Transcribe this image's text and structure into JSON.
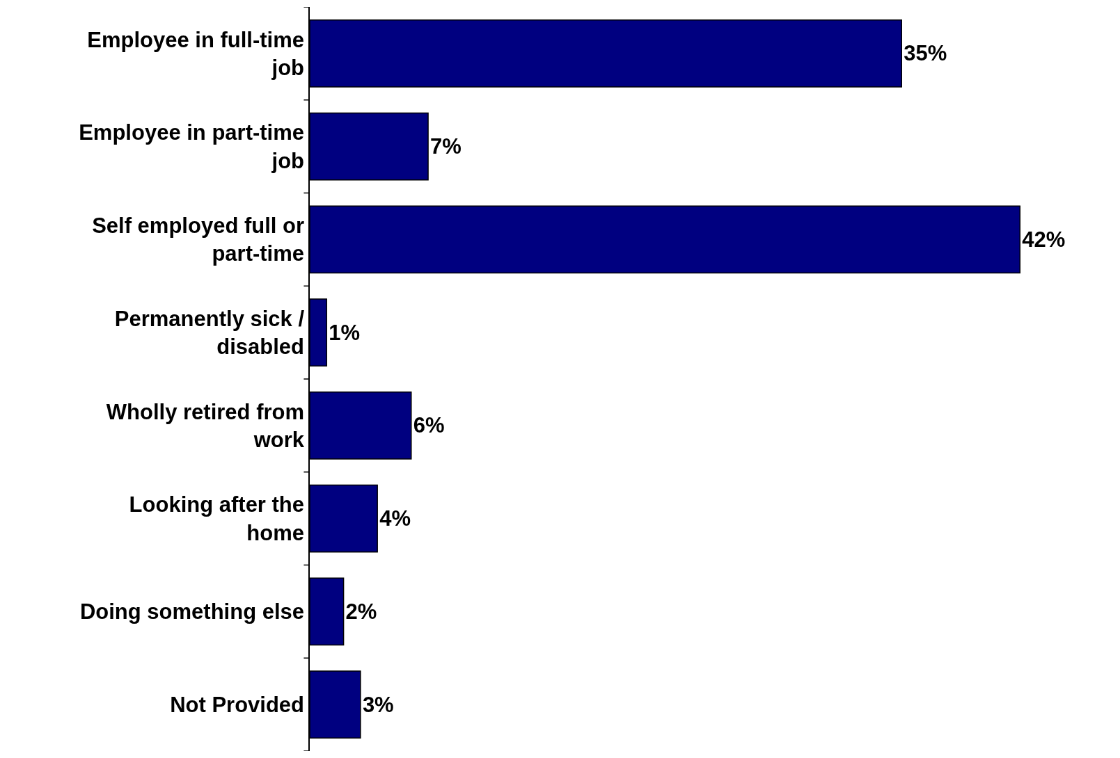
{
  "chart_data": {
    "type": "bar",
    "orientation": "horizontal",
    "categories": [
      "Employee in full-time job",
      "Employee in part-time job",
      "Self employed full or part-time",
      "Permanently sick / disabled",
      "Wholly retired from work",
      "Looking after the home",
      "Doing something else",
      "Not Provided"
    ],
    "values": [
      35,
      7,
      42,
      1,
      6,
      4,
      2,
      3
    ],
    "value_labels": [
      "35%",
      "7%",
      "42%",
      "1%",
      "6%",
      "4%",
      "2%",
      "3%"
    ],
    "color": "#000080"
  }
}
